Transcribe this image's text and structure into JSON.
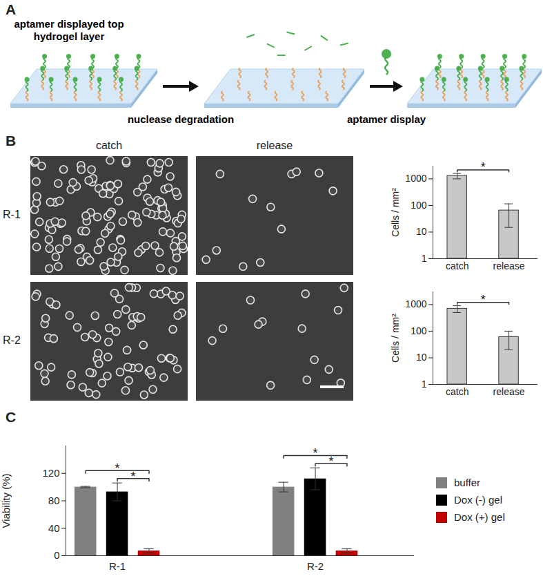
{
  "panels": {
    "A": {
      "label": "A",
      "texts": {
        "start": [
          "aptamer displayed top",
          "hydrogel layer"
        ],
        "step1": "nuclease degradation",
        "step2": "aptamer display"
      }
    },
    "B": {
      "label": "B",
      "columns": [
        "catch",
        "release"
      ],
      "rows": [
        "R-1",
        "R-2"
      ]
    },
    "C": {
      "label": "C"
    }
  },
  "chart_data": [
    {
      "type": "bar",
      "categories": [
        "catch",
        "release"
      ],
      "values": [
        1300,
        65
      ],
      "errors": [
        300,
        50
      ],
      "color": "#c8c8c8",
      "ylabel": "Cells / mm²",
      "log": "y",
      "ylim": [
        1,
        3000
      ],
      "yticks": [
        1,
        10,
        100,
        1000
      ],
      "annotations": [
        {
          "from": "catch",
          "to": "release",
          "text": "*"
        }
      ]
    },
    {
      "type": "bar",
      "categories": [
        "catch",
        "release"
      ],
      "values": [
        700,
        60
      ],
      "errors": [
        200,
        40
      ],
      "color": "#c8c8c8",
      "ylabel": "Cells / mm²",
      "log": "y",
      "ylim": [
        1,
        3000
      ],
      "yticks": [
        1,
        10,
        100,
        1000
      ],
      "annotations": [
        {
          "from": "catch",
          "to": "release",
          "text": "*"
        }
      ]
    },
    {
      "type": "bar",
      "categories": [
        "R-1",
        "R-2"
      ],
      "ylabel": "Viability (%)",
      "ylim": [
        0,
        160
      ],
      "yticks": [
        0,
        40,
        80,
        120
      ],
      "legend": "right",
      "series": [
        {
          "name": "buffer",
          "color": "#808080",
          "values": [
            100,
            100
          ],
          "errors": [
            1,
            7
          ]
        },
        {
          "name": "Dox (-) gel",
          "color": "#000000",
          "values": [
            93,
            112
          ],
          "errors": [
            13,
            16
          ]
        },
        {
          "name": "Dox (+) gel",
          "color": "#c00000",
          "values": [
            7,
            7
          ],
          "errors": [
            3,
            3
          ]
        }
      ],
      "annotations": [
        {
          "category": "R-1",
          "from": "buffer",
          "to": "Dox (+) gel",
          "text": "*"
        },
        {
          "category": "R-1",
          "from": "Dox (-) gel",
          "to": "Dox (+) gel",
          "text": "*"
        },
        {
          "category": "R-2",
          "from": "buffer",
          "to": "Dox (+) gel",
          "text": "*"
        },
        {
          "category": "R-2",
          "from": "Dox (-) gel",
          "to": "Dox (+) gel",
          "text": "*"
        }
      ]
    }
  ]
}
